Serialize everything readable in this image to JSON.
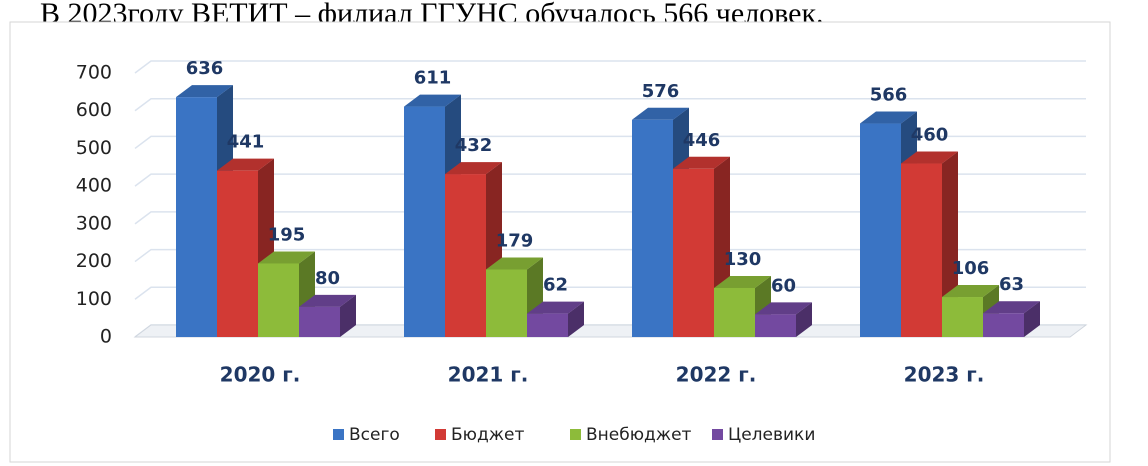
{
  "heading": "В 2023году ВЕТИТ – филиал ГГУНС обучалось 566 человек.",
  "chart_data": {
    "type": "bar3d",
    "categories": [
      "2020 г.",
      "2021 г.",
      "2022 г.",
      "2023 г."
    ],
    "series": [
      {
        "name": "Всего",
        "color": "#3a74c4",
        "values": [
          636,
          611,
          576,
          566
        ]
      },
      {
        "name": "Бюджет",
        "color": "#d23a35",
        "values": [
          441,
          432,
          446,
          460
        ]
      },
      {
        "name": "Внебюджет",
        "color": "#8dbb3a",
        "values": [
          195,
          179,
          130,
          106
        ]
      },
      {
        "name": "Целевики",
        "color": "#7349a0",
        "values": [
          80,
          62,
          60,
          63
        ]
      }
    ],
    "ylim": [
      0,
      700
    ],
    "yticks": [
      0,
      100,
      200,
      300,
      400,
      500,
      600,
      700
    ],
    "grid": true,
    "legend": "bottom"
  }
}
